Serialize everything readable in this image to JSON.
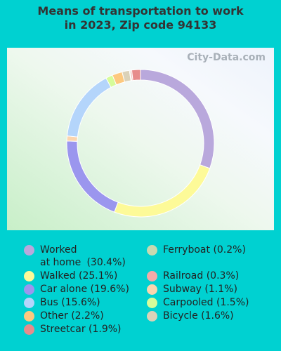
{
  "chart_data": {
    "type": "donut",
    "title": "Means of transportation to work in 2023, Zip code 94133",
    "watermark": "City-Data.com",
    "categories": [
      "Worked at home",
      "Walked",
      "Car alone",
      "Subway",
      "Bus",
      "Carpooled",
      "Other",
      "Bicycle",
      "Ferryboat",
      "Railroad",
      "Streetcar"
    ],
    "values": [
      30.4,
      25.1,
      19.6,
      1.1,
      15.6,
      1.5,
      2.2,
      1.6,
      0.2,
      0.3,
      1.9
    ],
    "value_labels": [
      "(30.4%)",
      "(25.1%)",
      "(19.6%)",
      "(1.1%)",
      "(15.6%)",
      "(1.5%)",
      "(2.2%)",
      "(1.6%)",
      "(0.2%)",
      "(0.3%)",
      "(1.9%)"
    ],
    "colors": [
      "#b9a8dc",
      "#fdfa98",
      "#9b96ee",
      "#fbd5ae",
      "#b4d5fb",
      "#d6fc9a",
      "#fdc97f",
      "#dbd2b8",
      "#c8d9b0",
      "#f4aaa8",
      "#e78c8c"
    ]
  }
}
